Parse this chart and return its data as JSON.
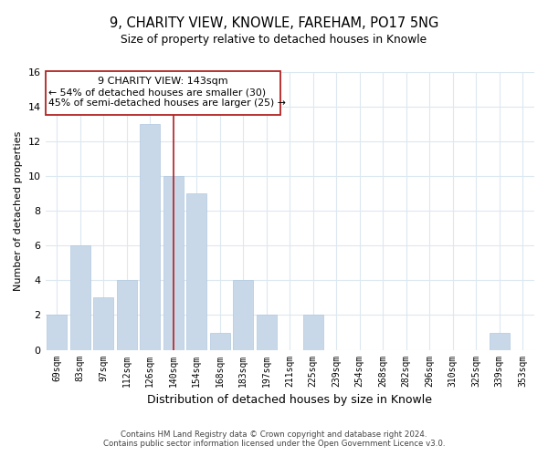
{
  "title": "9, CHARITY VIEW, KNOWLE, FAREHAM, PO17 5NG",
  "subtitle": "Size of property relative to detached houses in Knowle",
  "xlabel": "Distribution of detached houses by size in Knowle",
  "ylabel": "Number of detached properties",
  "bar_color": "#c8d8e8",
  "bar_edge_color": "#b0c8e0",
  "marker_color": "#b22222",
  "bins": [
    "69sqm",
    "83sqm",
    "97sqm",
    "112sqm",
    "126sqm",
    "140sqm",
    "154sqm",
    "168sqm",
    "183sqm",
    "197sqm",
    "211sqm",
    "225sqm",
    "239sqm",
    "254sqm",
    "268sqm",
    "282sqm",
    "296sqm",
    "310sqm",
    "325sqm",
    "339sqm",
    "353sqm"
  ],
  "counts": [
    2,
    6,
    3,
    4,
    13,
    10,
    9,
    1,
    4,
    2,
    0,
    2,
    0,
    0,
    0,
    0,
    0,
    0,
    0,
    1,
    0
  ],
  "marker_bin_index": 5,
  "ylim": [
    0,
    16
  ],
  "yticks": [
    0,
    2,
    4,
    6,
    8,
    10,
    12,
    14,
    16
  ],
  "annotation_title": "9 CHARITY VIEW: 143sqm",
  "annotation_line1": "← 54% of detached houses are smaller (30)",
  "annotation_line2": "45% of semi-detached houses are larger (25) →",
  "footer1": "Contains HM Land Registry data © Crown copyright and database right 2024.",
  "footer2": "Contains public sector information licensed under the Open Government Licence v3.0.",
  "background_color": "#ffffff",
  "grid_color": "#dce8f0"
}
